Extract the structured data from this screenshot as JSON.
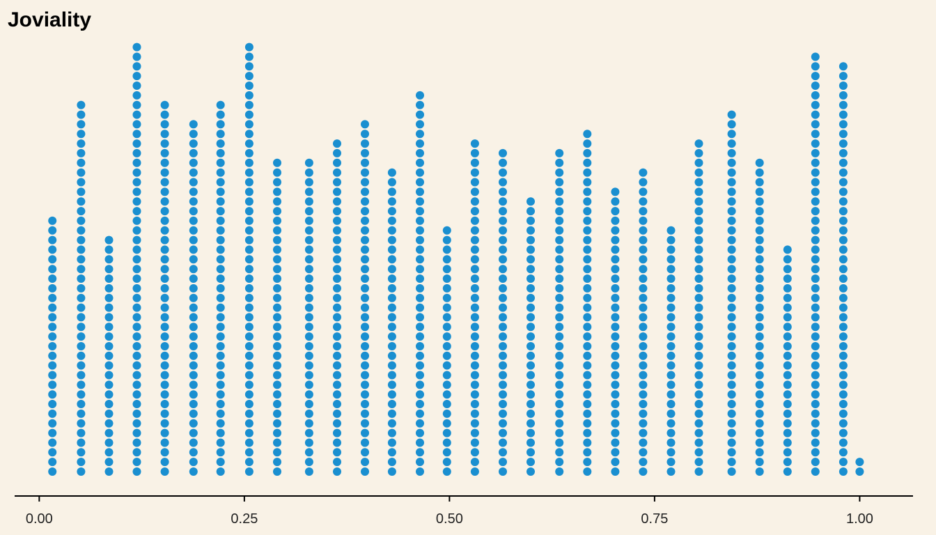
{
  "chart_data": {
    "type": "dotplot",
    "title": "Joviality",
    "xlabel": "",
    "ylabel": "",
    "xlim": [
      -0.03,
      1.065
    ],
    "x_ticks": [
      0.0,
      0.25,
      0.5,
      0.75,
      1.0
    ],
    "x_tick_labels": [
      "0.00",
      "0.25",
      "0.50",
      "0.75",
      "1.00"
    ],
    "grid": false,
    "dot_color": "#1a8fd0",
    "axis_color": "#000000",
    "background": "#f9f2e6",
    "bins": [
      {
        "x": 0.016,
        "count": 27
      },
      {
        "x": 0.051,
        "count": 39
      },
      {
        "x": 0.085,
        "count": 25
      },
      {
        "x": 0.119,
        "count": 45
      },
      {
        "x": 0.153,
        "count": 39
      },
      {
        "x": 0.188,
        "count": 37
      },
      {
        "x": 0.221,
        "count": 39
      },
      {
        "x": 0.256,
        "count": 45
      },
      {
        "x": 0.29,
        "count": 33
      },
      {
        "x": 0.329,
        "count": 33
      },
      {
        "x": 0.363,
        "count": 35
      },
      {
        "x": 0.397,
        "count": 37
      },
      {
        "x": 0.43,
        "count": 32
      },
      {
        "x": 0.464,
        "count": 40
      },
      {
        "x": 0.497,
        "count": 26
      },
      {
        "x": 0.531,
        "count": 35
      },
      {
        "x": 0.565,
        "count": 34
      },
      {
        "x": 0.599,
        "count": 29
      },
      {
        "x": 0.634,
        "count": 34
      },
      {
        "x": 0.668,
        "count": 36
      },
      {
        "x": 0.702,
        "count": 30
      },
      {
        "x": 0.736,
        "count": 32
      },
      {
        "x": 0.77,
        "count": 26
      },
      {
        "x": 0.804,
        "count": 35
      },
      {
        "x": 0.844,
        "count": 38
      },
      {
        "x": 0.878,
        "count": 33
      },
      {
        "x": 0.912,
        "count": 24
      },
      {
        "x": 0.946,
        "count": 44
      },
      {
        "x": 0.98,
        "count": 43
      },
      {
        "x": 1.0,
        "count": 2
      }
    ]
  }
}
